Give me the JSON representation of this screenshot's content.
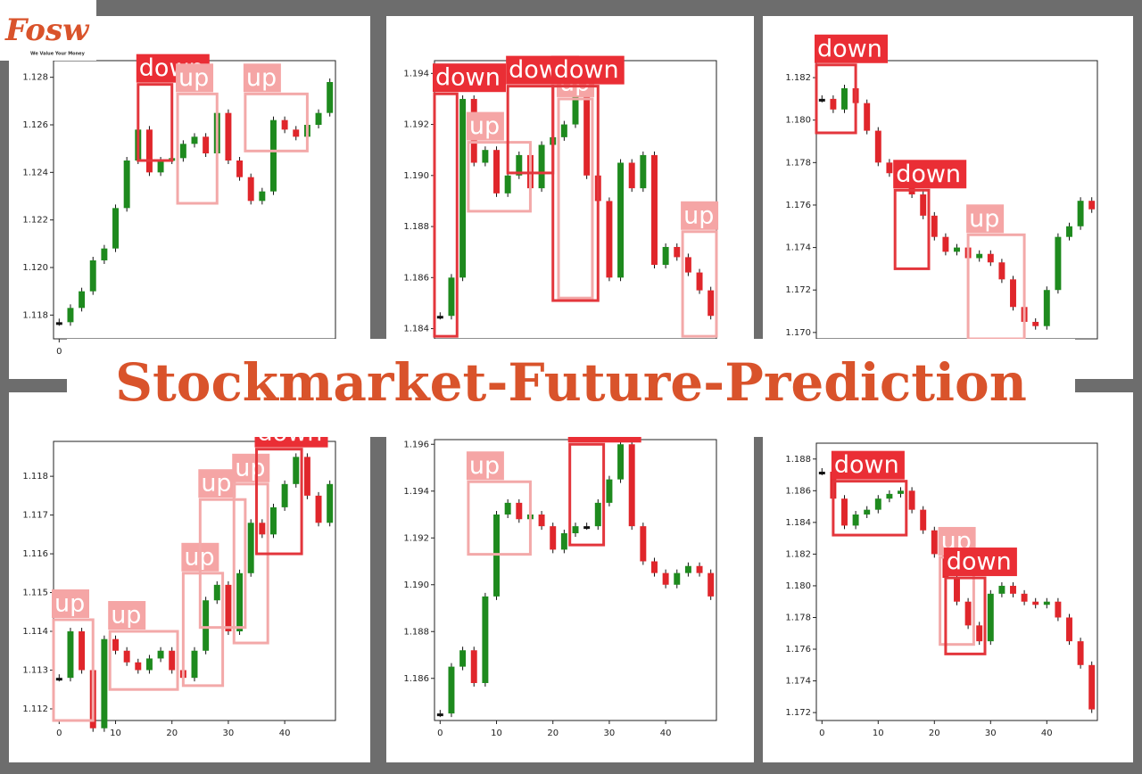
{
  "logo": {
    "mark": "Fosw",
    "tagline": "We Value Your Money"
  },
  "title": "Stockmarket-Future-Prediction",
  "panels": [
    {
      "ylim": [
        1.117,
        1.1287
      ],
      "yticks": [
        1.118,
        {
          "value": 1.12,
          "label": "1.120"
        },
        1.122,
        1.124,
        1.126,
        1.128
      ],
      "xlim": [
        -1,
        49
      ],
      "xticks": [
        0
      ],
      "closes": [
        1.1177,
        1.1183,
        1.119,
        1.1203,
        1.1208,
        1.1225,
        1.1245,
        1.1258,
        1.124,
        1.1245,
        1.1246,
        1.1252,
        1.1255,
        1.1248,
        1.1265,
        1.1245,
        1.1238,
        1.1228,
        1.1232,
        1.1262,
        1.1258,
        1.1255,
        1.126,
        1.1265,
        1.1278
      ],
      "boxes": [
        {
          "label": "down",
          "x0": 14,
          "x1": 20,
          "y0": 1.1245,
          "y1": 1.1277
        },
        {
          "label": "up",
          "x0": 21,
          "x1": 28,
          "y0": 1.1227,
          "y1": 1.1273
        },
        {
          "label": "up",
          "x0": 33,
          "x1": 44,
          "y0": 1.1249,
          "y1": 1.1273
        }
      ]
    },
    {
      "ylim": [
        1.1836,
        1.1945
      ],
      "yticks": [
        1.184,
        1.186,
        1.188,
        {
          "value": 1.19,
          "label": "1.190"
        },
        1.192,
        1.194
      ],
      "xlim": [
        -1,
        49
      ],
      "xticks": [],
      "closes": [
        1.1845,
        1.186,
        1.193,
        1.1905,
        1.191,
        1.1893,
        1.19,
        1.1908,
        1.1895,
        1.1912,
        1.1915,
        1.192,
        1.1935,
        1.19,
        1.189,
        1.186,
        1.1905,
        1.1895,
        1.1908,
        1.1865,
        1.1872,
        1.1868,
        1.1862,
        1.1855,
        1.1845
      ],
      "boxes": [
        {
          "label": "down",
          "x0": -1,
          "x1": 3,
          "y0": 1.1837,
          "y1": 1.1932
        },
        {
          "label": "up",
          "x0": 5,
          "x1": 16,
          "y0": 1.1886,
          "y1": 1.1913
        },
        {
          "label": "down",
          "x0": 12,
          "x1": 20,
          "y0": 1.1901,
          "y1": 1.1935
        },
        {
          "label": "up",
          "x0": 21,
          "x1": 27,
          "y0": 1.1852,
          "y1": 1.193
        },
        {
          "label": "down",
          "x0": 20,
          "x1": 28,
          "y0": 1.1851,
          "y1": 1.1935
        },
        {
          "label": "up",
          "x0": 43,
          "x1": 49,
          "y0": 1.1837,
          "y1": 1.1878
        }
      ]
    },
    {
      "ylim": [
        1.1697,
        1.1828
      ],
      "yticks": [
        {
          "value": 1.17,
          "label": "1.170"
        },
        1.172,
        1.174,
        1.176,
        1.178,
        {
          "value": 1.18,
          "label": "1.180"
        },
        1.182
      ],
      "xlim": [
        -1,
        49
      ],
      "xticks": [],
      "closes": [
        1.181,
        1.1805,
        1.1815,
        1.1808,
        1.1795,
        1.178,
        1.1775,
        1.1772,
        1.1765,
        1.1755,
        1.1745,
        1.1738,
        1.174,
        1.1735,
        1.1737,
        1.1733,
        1.1725,
        1.1712,
        1.1705,
        1.1703,
        1.172,
        1.1745,
        1.175,
        1.1762,
        1.1758
      ],
      "boxes": [
        {
          "label": "down",
          "x0": -1,
          "x1": 6,
          "y0": 1.1794,
          "y1": 1.1826
        },
        {
          "label": "down",
          "x0": 13,
          "x1": 19,
          "y0": 1.173,
          "y1": 1.1767
        },
        {
          "label": "up",
          "x0": 26,
          "x1": 36,
          "y0": 1.1697,
          "y1": 1.1746
        }
      ]
    },
    {
      "ylim": [
        1.1117,
        1.1189
      ],
      "yticks": [
        1.112,
        1.113,
        1.114,
        1.115,
        1.116,
        1.117,
        1.118
      ],
      "xlim": [
        -1,
        49
      ],
      "xticks": [
        0,
        10,
        20,
        30,
        40
      ],
      "closes": [
        1.1128,
        1.114,
        1.113,
        1.1115,
        1.1138,
        1.1135,
        1.1132,
        1.113,
        1.1133,
        1.1135,
        1.113,
        1.1128,
        1.1135,
        1.1148,
        1.1152,
        1.114,
        1.1155,
        1.1168,
        1.1165,
        1.1172,
        1.1178,
        1.1185,
        1.1175,
        1.1168,
        1.1178
      ],
      "boxes": [
        {
          "label": "up",
          "x0": -1,
          "x1": 6,
          "y0": 1.1117,
          "y1": 1.1143
        },
        {
          "label": "up",
          "x0": 9,
          "x1": 21,
          "y0": 1.1125,
          "y1": 1.114
        },
        {
          "label": "up",
          "x0": 22,
          "x1": 29,
          "y0": 1.1126,
          "y1": 1.1155
        },
        {
          "label": "up",
          "x0": 25,
          "x1": 33,
          "y0": 1.1141,
          "y1": 1.1174
        },
        {
          "label": "up",
          "x0": 31,
          "x1": 37,
          "y0": 1.1137,
          "y1": 1.1178
        },
        {
          "label": "down",
          "x0": 35,
          "x1": 43,
          "y0": 1.116,
          "y1": 1.1187
        }
      ]
    },
    {
      "ylim": [
        1.1842,
        1.1962
      ],
      "yticks": [
        1.186,
        1.188,
        {
          "value": 1.19,
          "label": "1.190"
        },
        1.192,
        1.194,
        1.196
      ],
      "xlim": [
        -1,
        49
      ],
      "xticks": [
        0,
        10,
        20,
        30,
        40
      ],
      "closes": [
        1.1845,
        1.1865,
        1.1872,
        1.1858,
        1.1895,
        1.193,
        1.1935,
        1.1928,
        1.193,
        1.1925,
        1.1915,
        1.1922,
        1.1925,
        1.1925,
        1.1935,
        1.1945,
        1.196,
        1.1925,
        1.191,
        1.1905,
        1.19,
        1.1905,
        1.1908,
        1.1905,
        1.1895
      ],
      "boxes": [
        {
          "label": "up",
          "x0": 5,
          "x1": 16,
          "y0": 1.1913,
          "y1": 1.1944
        },
        {
          "label": "down",
          "x0": 23,
          "x1": 29,
          "y0": 1.1917,
          "y1": 1.196
        }
      ]
    },
    {
      "ylim": [
        1.1715,
        1.189
      ],
      "yticks": [
        1.172,
        1.174,
        1.176,
        1.178,
        {
          "value": 1.18,
          "label": "1.180"
        },
        1.182,
        1.184,
        1.186,
        1.188
      ],
      "xlim": [
        -1,
        49
      ],
      "xticks": [
        0,
        10,
        20,
        30,
        40
      ],
      "closes": [
        1.1872,
        1.1855,
        1.1838,
        1.1845,
        1.1848,
        1.1855,
        1.1858,
        1.186,
        1.1848,
        1.1835,
        1.182,
        1.1805,
        1.179,
        1.1775,
        1.1765,
        1.1795,
        1.18,
        1.1795,
        1.179,
        1.1788,
        1.179,
        1.178,
        1.1765,
        1.175,
        1.1722
      ],
      "boxes": [
        {
          "label": "down",
          "x0": 2,
          "x1": 15,
          "y0": 1.1832,
          "y1": 1.1866
        },
        {
          "label": "up",
          "x0": 21,
          "x1": 27,
          "y0": 1.1763,
          "y1": 1.1818
        },
        {
          "label": "down",
          "x0": 22,
          "x1": 29,
          "y0": 1.1757,
          "y1": 1.1805
        }
      ]
    }
  ]
}
